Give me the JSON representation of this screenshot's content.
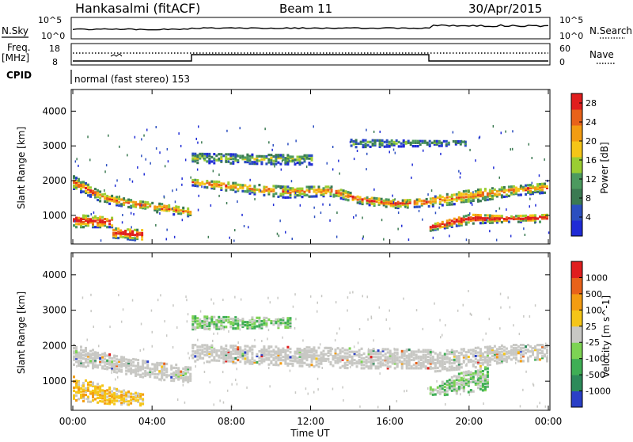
{
  "header": {
    "station": "Hankasalmi (fitACF)",
    "beam": "Beam 11",
    "date": "30/Apr/2015"
  },
  "status_panels": {
    "nsky_label": "N.Sky",
    "nsearch_label": "N.Search",
    "freq_label_line1": "Freq.",
    "freq_label_line2": "[MHz]",
    "nave_label": "Nave",
    "cpid_label": "CPID",
    "cpid_value": "normal (fast stereo) 153",
    "noise_ticks_left": [
      "10^5",
      "10^0"
    ],
    "noise_ticks_right": [
      "10^5",
      "10^0"
    ],
    "freq_ticks": [
      "18",
      "8"
    ],
    "nave_ticks": [
      "60",
      "0"
    ]
  },
  "x_axis": {
    "label": "Time UT",
    "ticks": [
      "00:00",
      "04:00",
      "08:00",
      "12:00",
      "16:00",
      "20:00",
      "00:00"
    ]
  },
  "colors": {
    "power_scale": [
      "#1f2bd6",
      "#2c4fc0",
      "#3b7a52",
      "#4c9a5f",
      "#9acd32",
      "#f5c518",
      "#f39c12",
      "#e8621a",
      "#e01e1e"
    ],
    "velocity_scale": [
      "#2a3fc6",
      "#2d8a5a",
      "#3fae55",
      "#7dd354",
      "#c8c8c4",
      "#f5c518",
      "#f39c12",
      "#e8621a",
      "#e01e1e"
    ]
  },
  "chart_data": [
    {
      "type": "heatmap",
      "panel": "power",
      "ylabel": "Slant Range [km]",
      "xlabel": "",
      "y_ticks": [
        1000,
        2000,
        3000,
        4000
      ],
      "ylim": [
        200,
        4600
      ],
      "xlim_hours": [
        0,
        24
      ],
      "colorbar_label": "Power [dB]",
      "colorbar_ticks": [
        4,
        8,
        12,
        16,
        20,
        24,
        28
      ],
      "colorbar_range": [
        0,
        30
      ],
      "bands": [
        {
          "t": [
            0.0,
            6.0
          ],
          "r": [
            [
              1800,
              2200
            ],
            [
              1400,
              1700
            ],
            [
              1250,
              1500
            ],
            [
              1100,
              1400
            ],
            [
              1000,
              1250
            ]
          ],
          "core": 0.6
        },
        {
          "t": [
            6.0,
            13.0
          ],
          "r": [
            [
              1900,
              2100
            ],
            [
              1700,
              2000
            ],
            [
              1550,
              1900
            ],
            [
              1600,
              1900
            ]
          ],
          "core": 0.55
        },
        {
          "t": [
            13.0,
            18.0
          ],
          "r": [
            [
              1600,
              1900
            ],
            [
              1350,
              1600
            ],
            [
              1250,
              1500
            ],
            [
              1300,
              1550
            ]
          ],
          "core": 0.7
        },
        {
          "t": [
            18.0,
            24.0
          ],
          "r": [
            [
              1300,
              1600
            ],
            [
              1400,
              1800
            ],
            [
              1600,
              1900
            ],
            [
              1700,
              2000
            ]
          ],
          "core": 0.6
        },
        {
          "t": [
            0.0,
            2.0
          ],
          "r": [
            [
              700,
              1100
            ],
            [
              700,
              1000
            ]
          ],
          "core": 0.9
        },
        {
          "t": [
            2.0,
            3.5
          ],
          "r": [
            [
              400,
              700
            ],
            [
              300,
              650
            ]
          ],
          "core": 0.9
        },
        {
          "t": [
            18.0,
            24.0
          ],
          "r": [
            [
              600,
              800
            ],
            [
              800,
              1100
            ],
            [
              850,
              1050
            ],
            [
              850,
              1100
            ]
          ],
          "core": 0.9
        },
        {
          "t": [
            6.0,
            12.0
          ],
          "r": [
            [
              2550,
              2850
            ],
            [
              2500,
              2800
            ]
          ],
          "core": 0.25
        },
        {
          "t": [
            14.0,
            20.0
          ],
          "r": [
            [
              3000,
              3250
            ],
            [
              3050,
              3200
            ]
          ],
          "core": 0.15
        }
      ]
    },
    {
      "type": "heatmap",
      "panel": "velocity",
      "ylabel": "Slant Range [km]",
      "xlabel": "Time UT",
      "y_ticks": [
        1000,
        2000,
        3000,
        4000
      ],
      "ylim": [
        200,
        4600
      ],
      "xlim_hours": [
        0,
        24
      ],
      "colorbar_label": "Velocity [m s^-1]",
      "colorbar_ticks": [
        "1000",
        "500",
        "100",
        "25",
        "-25",
        "-100",
        "-500",
        "-1000"
      ],
      "bands": [
        {
          "t": [
            0.0,
            6.0
          ],
          "r": [
            [
              1500,
              2100
            ],
            [
              1300,
              1800
            ],
            [
              1100,
              1600
            ],
            [
              1000,
              1500
            ]
          ],
          "kind": "grey"
        },
        {
          "t": [
            6.0,
            18.0
          ],
          "r": [
            [
              1600,
              2100
            ],
            [
              1500,
              2050
            ],
            [
              1400,
              2000
            ],
            [
              1400,
              1950
            ]
          ],
          "kind": "grey"
        },
        {
          "t": [
            18.0,
            24.0
          ],
          "r": [
            [
              1300,
              1900
            ],
            [
              1400,
              2000
            ],
            [
              1600,
              2100
            ],
            [
              1600,
              2100
            ]
          ],
          "kind": "grey"
        },
        {
          "t": [
            0.0,
            3.5
          ],
          "r": [
            [
              500,
              1200
            ],
            [
              400,
              900
            ],
            [
              350,
              700
            ]
          ],
          "kind": "orange"
        },
        {
          "t": [
            18.0,
            21.0
          ],
          "r": [
            [
              600,
              900
            ],
            [
              700,
              1300
            ],
            [
              800,
              1500
            ]
          ],
          "kind": "green"
        },
        {
          "t": [
            6.0,
            11.0
          ],
          "r": [
            [
              2500,
              2900
            ],
            [
              2550,
              2850
            ]
          ],
          "kind": "green"
        }
      ]
    }
  ]
}
